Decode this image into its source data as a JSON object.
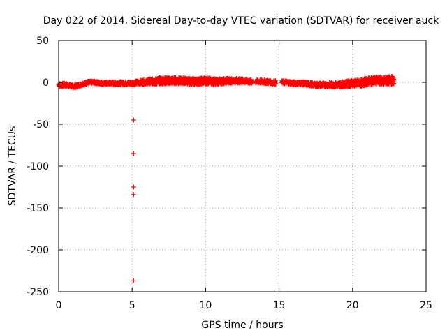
{
  "chart_data": {
    "type": "scatter",
    "title": "Day 022 of 2014, Sidereal Day-to-day VTEC variation (SDTVAR) for receiver auck",
    "xlabel": "GPS time / hours",
    "ylabel": "SDTVAR / TECUs",
    "xlim": [
      0,
      25
    ],
    "ylim": [
      -250,
      50
    ],
    "xticks": [
      0,
      5,
      10,
      15,
      20,
      25
    ],
    "yticks": [
      50,
      0,
      -50,
      -100,
      -150,
      -200,
      -250
    ],
    "grid": true,
    "marker": "+",
    "color": "#ff0000",
    "series": [
      {
        "name": "SDTVAR",
        "trend": [
          [
            0.0,
            -3
          ],
          [
            0.5,
            -3
          ],
          [
            0.8,
            -4
          ],
          [
            1.0,
            -5
          ],
          [
            1.3,
            -4
          ],
          [
            1.6,
            -2
          ],
          [
            2.0,
            0
          ],
          [
            2.5,
            0
          ],
          [
            3.0,
            -1
          ],
          [
            3.5,
            -1
          ],
          [
            4.0,
            -1
          ],
          [
            4.5,
            -1
          ],
          [
            5.0,
            -1
          ],
          [
            5.5,
            0
          ],
          [
            6.0,
            1
          ],
          [
            6.5,
            1
          ],
          [
            7.0,
            2
          ],
          [
            7.5,
            2
          ],
          [
            8.0,
            2
          ],
          [
            8.5,
            2
          ],
          [
            9.0,
            1
          ],
          [
            9.5,
            1
          ],
          [
            10.0,
            2
          ],
          [
            10.5,
            1
          ],
          [
            11.0,
            1
          ],
          [
            11.5,
            2
          ],
          [
            12.0,
            2
          ],
          [
            12.5,
            2
          ],
          [
            13.0,
            1
          ],
          [
            13.5,
            1
          ],
          [
            14.0,
            1
          ],
          [
            14.5,
            0
          ],
          [
            15.0,
            0
          ],
          [
            15.5,
            0
          ],
          [
            16.0,
            -1
          ],
          [
            16.5,
            -1
          ],
          [
            17.0,
            -2
          ],
          [
            17.5,
            -3
          ],
          [
            18.0,
            -3
          ],
          [
            18.5,
            -3
          ],
          [
            19.0,
            -3
          ],
          [
            19.5,
            -2
          ],
          [
            20.0,
            -1
          ],
          [
            20.5,
            -1
          ],
          [
            21.0,
            1
          ],
          [
            21.5,
            2
          ],
          [
            22.0,
            2
          ],
          [
            22.5,
            2
          ],
          [
            22.8,
            3
          ]
        ],
        "spread": [
          [
            0.0,
            2
          ],
          [
            2.0,
            1.5
          ],
          [
            5.0,
            2
          ],
          [
            6.0,
            3
          ],
          [
            7.0,
            4
          ],
          [
            9.0,
            3.5
          ],
          [
            10.0,
            4
          ],
          [
            11.5,
            3
          ],
          [
            13.0,
            2.5
          ],
          [
            15.0,
            2
          ],
          [
            17.0,
            2
          ],
          [
            19.0,
            3
          ],
          [
            20.5,
            4
          ],
          [
            22.8,
            5
          ]
        ],
        "gaps": [
          [
            13.2,
            13.4
          ],
          [
            14.8,
            15.2
          ]
        ],
        "outliers": [
          [
            5.1,
            -45
          ],
          [
            5.1,
            -85
          ],
          [
            5.1,
            -125
          ],
          [
            5.1,
            -134
          ],
          [
            5.1,
            -237
          ]
        ]
      }
    ]
  }
}
